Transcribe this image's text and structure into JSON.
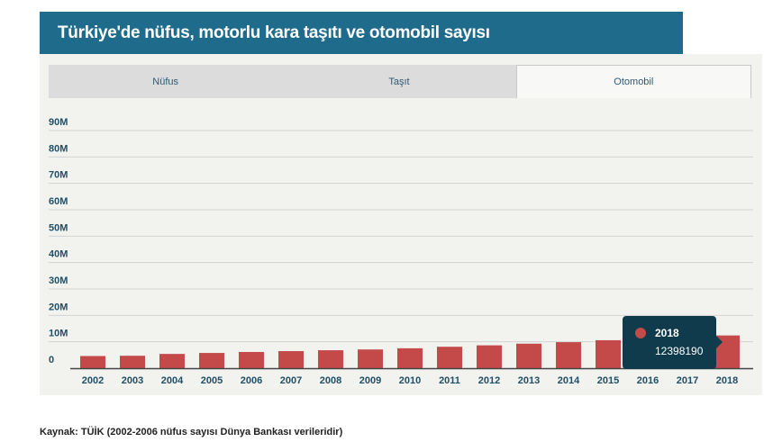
{
  "title": "Türkiye'de nüfus, motorlu kara taşıtı ve otomobil sayısı",
  "tabs": [
    {
      "label": "Nüfus",
      "active": false
    },
    {
      "label": "Taşıt",
      "active": false
    },
    {
      "label": "Otomobil",
      "active": true
    }
  ],
  "colors": {
    "header": "#1f6b8c",
    "bar": "#c44a4a",
    "tooltip": "#0f3b4d"
  },
  "tooltip": {
    "year": "2018",
    "value": "12398190"
  },
  "source": "Kaynak: TÜİK (2002-2006 nüfus sayısı Dünya Bankası verileridir)",
  "chart_data": {
    "type": "bar",
    "categories": [
      "2002",
      "2003",
      "2004",
      "2005",
      "2006",
      "2007",
      "2008",
      "2009",
      "2010",
      "2011",
      "2012",
      "2013",
      "2014",
      "2015",
      "2016",
      "2017",
      "2018"
    ],
    "values": [
      4600000,
      4700000,
      5400000,
      5770000,
      6140000,
      6470000,
      6800000,
      7090000,
      7540000,
      8110000,
      8650000,
      9280000,
      9860000,
      10590000,
      11320000,
      11900000,
      12398190
    ],
    "yticks": [
      "0",
      "10M",
      "20M",
      "30M",
      "40M",
      "50M",
      "60M",
      "70M",
      "80M",
      "90M"
    ],
    "ylim": [
      0,
      90000000
    ],
    "grid": true,
    "xlabel": "",
    "ylabel": ""
  }
}
